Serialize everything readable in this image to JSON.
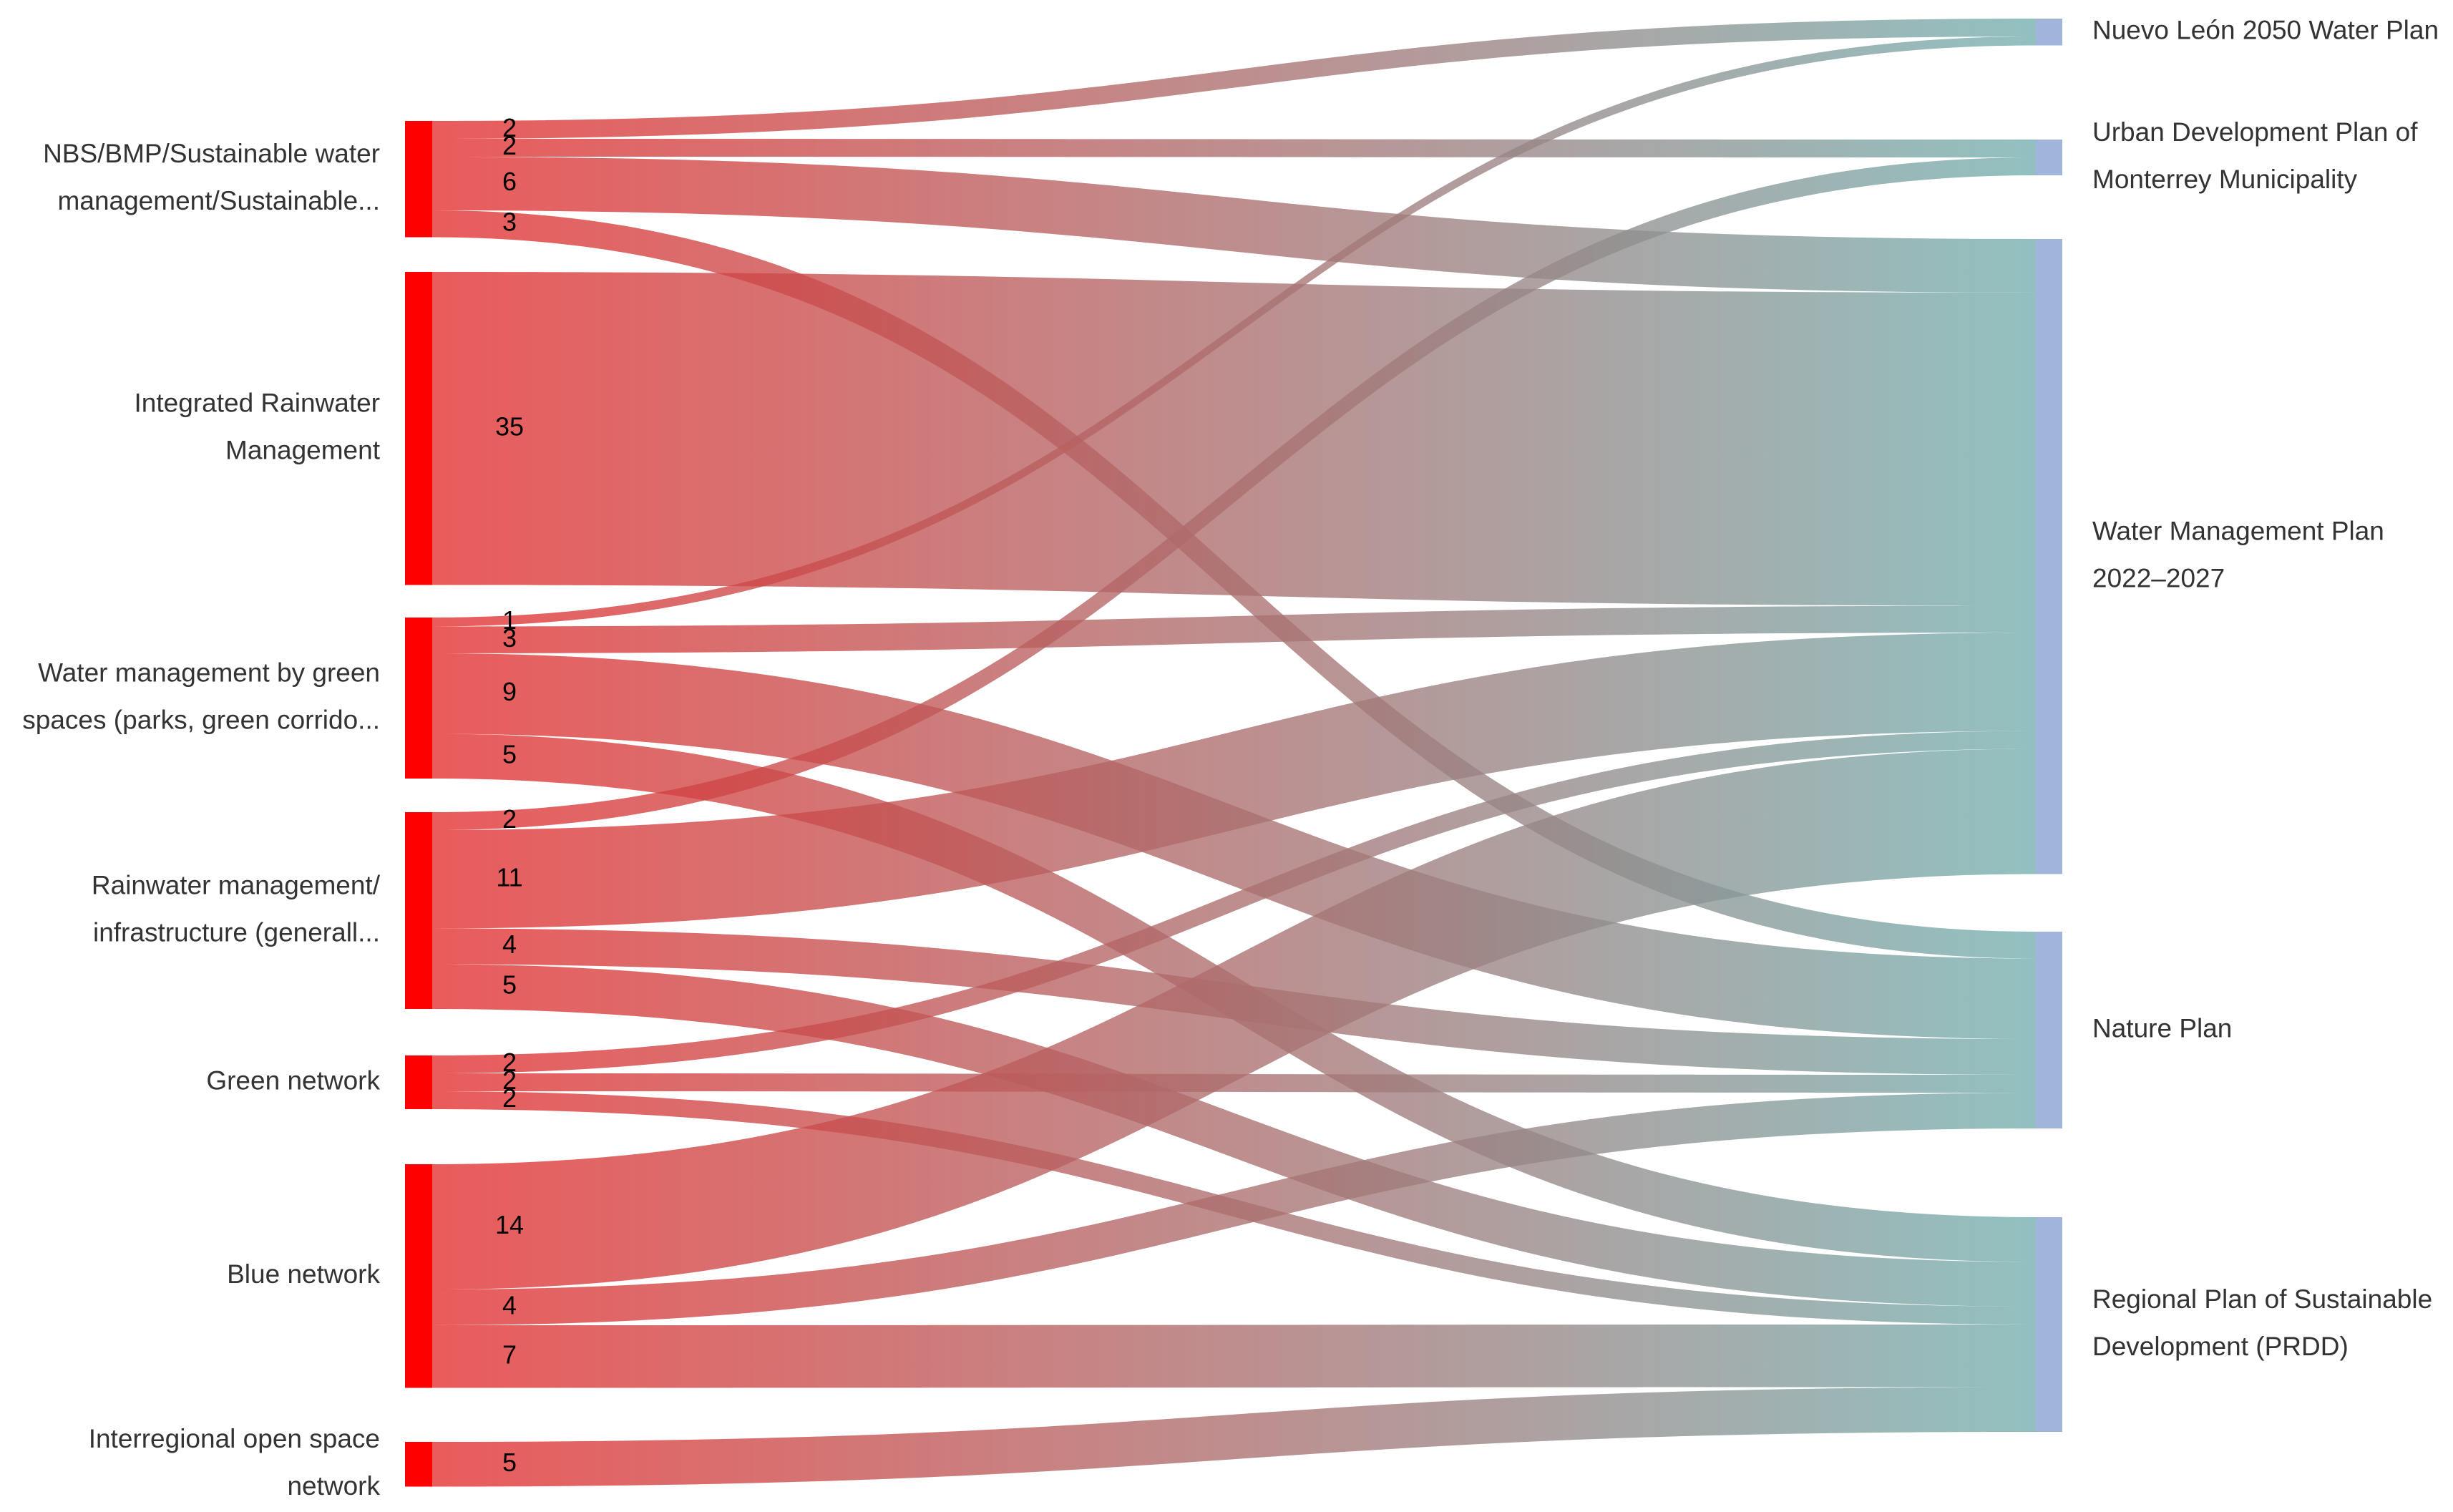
{
  "chart_data": {
    "type": "sankey",
    "source_color": "#ff0000",
    "target_color": "#a0b4dc",
    "link_color_start": "rgba(228,45,45,0.78)",
    "link_color_end": "rgba(115,175,175,0.78)",
    "sources": [
      {
        "label": [
          "NBS/BMP/Sustainable water",
          "management/Sustainable..."
        ]
      },
      {
        "label": [
          "Integrated Rainwater",
          "Management"
        ]
      },
      {
        "label": [
          "Water management by green",
          "spaces (parks, green corrido..."
        ]
      },
      {
        "label": [
          "Rainwater management/",
          "infrastructure (generall..."
        ]
      },
      {
        "label": [
          "Green network"
        ]
      },
      {
        "label": [
          "Blue network"
        ]
      },
      {
        "label": [
          "Interregional open space",
          "network"
        ]
      }
    ],
    "targets": [
      {
        "label": [
          "Nuevo León 2050 Water Plan"
        ]
      },
      {
        "label": [
          "Urban Development Plan of",
          "Monterrey Municipality"
        ]
      },
      {
        "label": [
          "Water Management Plan",
          "2022–2027"
        ]
      },
      {
        "label": [
          "Nature Plan"
        ]
      },
      {
        "label": [
          "Regional Plan of Sustainable",
          "Development (PRDD)"
        ]
      }
    ],
    "links": [
      {
        "source": 0,
        "target": 0,
        "value": 2
      },
      {
        "source": 0,
        "target": 1,
        "value": 2
      },
      {
        "source": 0,
        "target": 2,
        "value": 6
      },
      {
        "source": 0,
        "target": 3,
        "value": 3
      },
      {
        "source": 1,
        "target": 2,
        "value": 35
      },
      {
        "source": 2,
        "target": 0,
        "value": 1
      },
      {
        "source": 2,
        "target": 2,
        "value": 3
      },
      {
        "source": 2,
        "target": 3,
        "value": 9
      },
      {
        "source": 2,
        "target": 4,
        "value": 5
      },
      {
        "source": 3,
        "target": 1,
        "value": 2
      },
      {
        "source": 3,
        "target": 2,
        "value": 11
      },
      {
        "source": 3,
        "target": 3,
        "value": 4
      },
      {
        "source": 3,
        "target": 4,
        "value": 5
      },
      {
        "source": 4,
        "target": 2,
        "value": 2
      },
      {
        "source": 4,
        "target": 3,
        "value": 2
      },
      {
        "source": 4,
        "target": 4,
        "value": 2
      },
      {
        "source": 5,
        "target": 2,
        "value": 14
      },
      {
        "source": 5,
        "target": 3,
        "value": 4
      },
      {
        "source": 5,
        "target": 4,
        "value": 7
      },
      {
        "source": 6,
        "target": 4,
        "value": 5
      }
    ]
  }
}
